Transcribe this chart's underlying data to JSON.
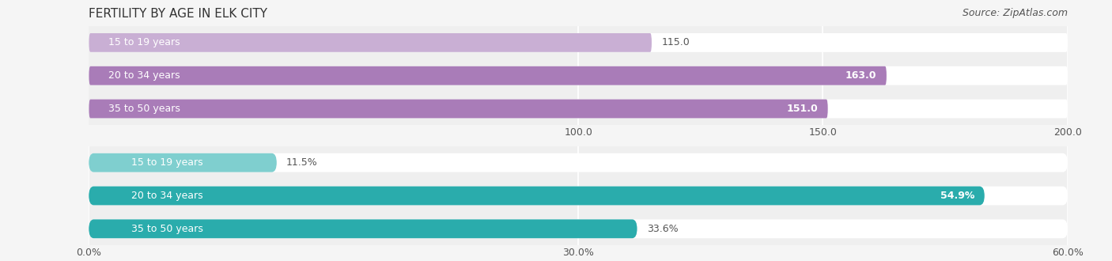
{
  "title": "FERTILITY BY AGE IN ELK CITY",
  "source": "Source: ZipAtlas.com",
  "top_chart": {
    "categories": [
      "15 to 19 years",
      "20 to 34 years",
      "35 to 50 years"
    ],
    "values": [
      115.0,
      163.0,
      151.0
    ],
    "xlim": [
      0,
      200
    ],
    "xticks": [
      100.0,
      150.0,
      200.0
    ],
    "bar_color_light": "#c9afd4",
    "bar_color_dark": "#a97cb8",
    "bg_color": "#efefef"
  },
  "bottom_chart": {
    "categories": [
      "15 to 19 years",
      "20 to 34 years",
      "35 to 50 years"
    ],
    "values": [
      11.5,
      54.9,
      33.6
    ],
    "labels": [
      "11.5%",
      "54.9%",
      "33.6%"
    ],
    "xlim": [
      0,
      60
    ],
    "xticks": [
      0.0,
      30.0,
      60.0
    ],
    "xticklabels": [
      "0.0%",
      "30.0%",
      "60.0%"
    ],
    "bar_color_light": "#7fcfcf",
    "bar_color_dark": "#2aacac",
    "bg_color": "#efefef"
  },
  "title_fontsize": 11,
  "source_fontsize": 9,
  "label_fontsize": 9,
  "tick_fontsize": 9,
  "category_fontsize": 9,
  "bar_height": 0.55,
  "bg_color": "#f5f5f5"
}
